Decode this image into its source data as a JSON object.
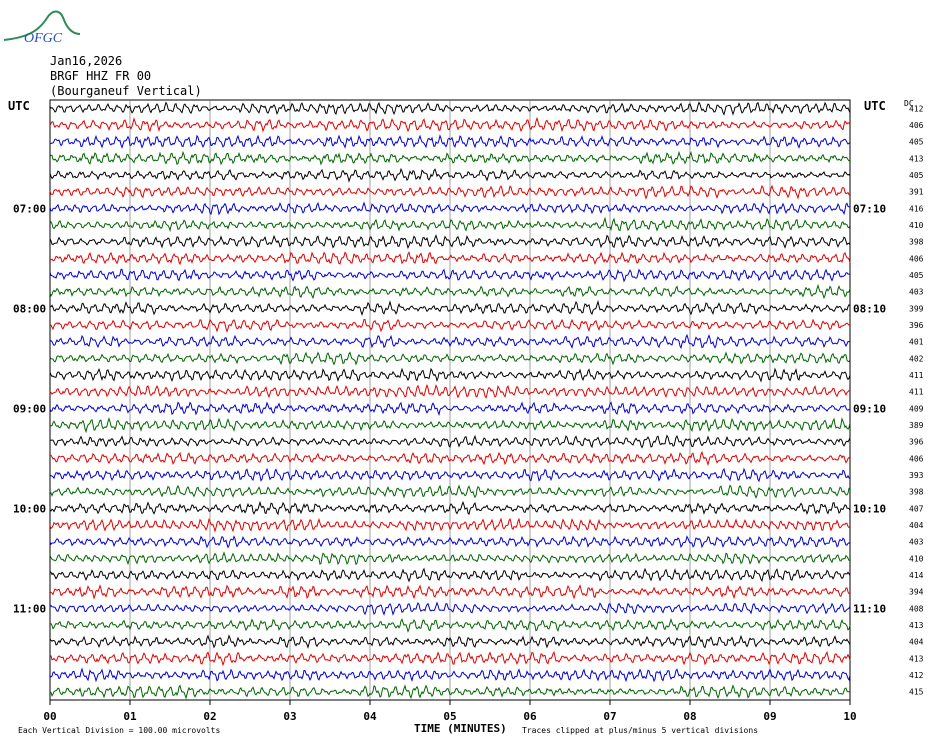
{
  "header": {
    "date": "Jan16,2026",
    "station": "BRGF HHZ FR 00",
    "location": "(Bourganeuf Vertical)",
    "logo_text": "OFGC"
  },
  "colors": {
    "black": "#000000",
    "red": "#e00000",
    "blue": "#0000d0",
    "green": "#006400"
  },
  "chart_data": {
    "type": "line",
    "title": "",
    "left_axis_label": "UTC",
    "right_axis_label": "UTC",
    "dc_label": "DC",
    "xlabel": "TIME (MINUTES)",
    "xlim": [
      0,
      10
    ],
    "x_ticks": [
      "00",
      "01",
      "02",
      "03",
      "04",
      "05",
      "06",
      "07",
      "08",
      "09",
      "10"
    ],
    "left_time_labels": [
      {
        "trace": 6,
        "label": "07:00"
      },
      {
        "trace": 12,
        "label": "08:00"
      },
      {
        "trace": 18,
        "label": "09:00"
      },
      {
        "trace": 24,
        "label": "10:00"
      },
      {
        "trace": 30,
        "label": "11:00"
      }
    ],
    "right_time_labels": [
      {
        "trace": 6,
        "label": "07:10"
      },
      {
        "trace": 12,
        "label": "08:10"
      },
      {
        "trace": 18,
        "label": "09:10"
      },
      {
        "trace": 24,
        "label": "10:10"
      },
      {
        "trace": 30,
        "label": "11:10"
      }
    ],
    "trace_colors": [
      "black",
      "red",
      "blue",
      "green"
    ],
    "dc_offsets": [
      412,
      406,
      405,
      413,
      405,
      391,
      416,
      410,
      398,
      406,
      405,
      403,
      399,
      396,
      401,
      402,
      411,
      411,
      409,
      389,
      396,
      406,
      393,
      398,
      407,
      404,
      403,
      410,
      414,
      394,
      408,
      413,
      404,
      413,
      412,
      415
    ],
    "footer_left": "Each Vertical Division =  100.00 microvolts",
    "footer_right": "Traces clipped at plus/minus 5 vertical divisions",
    "grid": true
  }
}
